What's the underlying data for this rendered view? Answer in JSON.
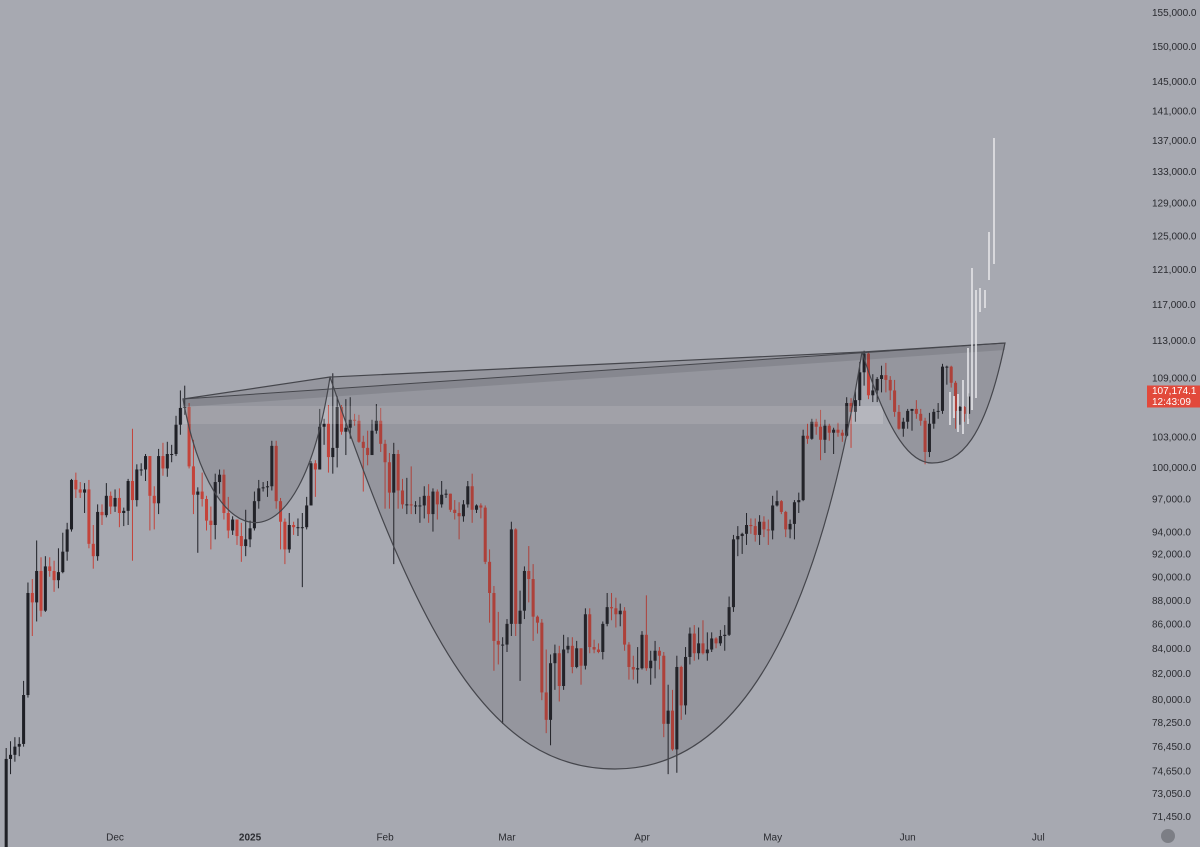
{
  "chart_data": {
    "type": "candlestick",
    "log_scale": true,
    "grid": false,
    "up_color": "#1f2026",
    "down_color": "#c4433a",
    "ylim": [
      70600,
      157000
    ],
    "yticks": [
      {
        "value": 155000,
        "label": "155,000.0"
      },
      {
        "value": 150000,
        "label": "150,000.0"
      },
      {
        "value": 145000,
        "label": "145,000.0"
      },
      {
        "value": 141000,
        "label": "141,000.0"
      },
      {
        "value": 137000,
        "label": "137,000.0"
      },
      {
        "value": 133000,
        "label": "133,000.0"
      },
      {
        "value": 129000,
        "label": "129,000.0"
      },
      {
        "value": 125000,
        "label": "125,000.0"
      },
      {
        "value": 121000,
        "label": "121,000.0"
      },
      {
        "value": 117000,
        "label": "117,000.0"
      },
      {
        "value": 113000,
        "label": "113,000.0"
      },
      {
        "value": 109000,
        "label": "109,000.0"
      },
      {
        "value": 103000,
        "label": "103,000.0"
      },
      {
        "value": 100000,
        "label": "100,000.0"
      },
      {
        "value": 97000,
        "label": "97,000.0"
      },
      {
        "value": 94000,
        "label": "94,000.0"
      },
      {
        "value": 92000,
        "label": "92,000.0"
      },
      {
        "value": 90000,
        "label": "90,000.0"
      },
      {
        "value": 88000,
        "label": "88,000.0"
      },
      {
        "value": 86000,
        "label": "86,000.0"
      },
      {
        "value": 84000,
        "label": "84,000.0"
      },
      {
        "value": 82000,
        "label": "82,000.0"
      },
      {
        "value": 80000,
        "label": "80,000.0"
      },
      {
        "value": 78250,
        "label": "78,250.0"
      },
      {
        "value": 76450,
        "label": "76,450.0"
      },
      {
        "value": 74650,
        "label": "74,650.0"
      },
      {
        "value": 73050,
        "label": "73,050.0"
      },
      {
        "value": 71450,
        "label": "71,450.0"
      }
    ],
    "last_price": {
      "value": 107174.1,
      "label": "107,174.1"
    },
    "countdown": "12:43:09",
    "categories": [
      null,
      null,
      null,
      null,
      null,
      null,
      null,
      null,
      null,
      null,
      null,
      null,
      null,
      null,
      null,
      null,
      null,
      null,
      null,
      null,
      null,
      null,
      null,
      null,
      null,
      "Dec",
      null,
      null,
      null,
      null,
      null,
      null,
      null,
      null,
      null,
      null,
      null,
      null,
      null,
      null,
      null,
      null,
      null,
      null,
      null,
      null,
      null,
      null,
      null,
      null,
      null,
      null,
      null,
      null,
      null,
      null,
      "2025",
      null,
      null,
      null,
      null,
      null,
      null,
      null,
      null,
      null,
      null,
      null,
      null,
      null,
      null,
      null,
      null,
      null,
      null,
      null,
      null,
      null,
      null,
      null,
      null,
      null,
      null,
      null,
      null,
      null,
      null,
      "Feb",
      null,
      null,
      null,
      null,
      null,
      null,
      null,
      null,
      null,
      null,
      null,
      null,
      null,
      null,
      null,
      null,
      null,
      null,
      null,
      null,
      null,
      null,
      null,
      null,
      null,
      null,
      null,
      "Mar",
      null,
      null,
      null,
      null,
      null,
      null,
      null,
      null,
      null,
      null,
      null,
      null,
      null,
      null,
      null,
      null,
      null,
      null,
      null,
      null,
      null,
      null,
      null,
      null,
      null,
      null,
      null,
      null,
      null,
      null,
      "Apr",
      null,
      null,
      null,
      null,
      null,
      null,
      null,
      null,
      null,
      null,
      null,
      null,
      null,
      null,
      null,
      null,
      null,
      null,
      null,
      null,
      null,
      null,
      null,
      null,
      null,
      null,
      null,
      null,
      null,
      "May",
      null,
      null,
      null,
      null,
      null,
      null,
      null,
      null,
      null,
      null,
      null,
      null,
      null,
      null,
      null,
      null,
      null,
      null,
      null,
      null,
      null,
      null,
      null,
      null,
      null,
      null,
      null,
      null,
      null,
      null,
      "Jun",
      null,
      null,
      null,
      null,
      null,
      null,
      null,
      null,
      null,
      null,
      null,
      null,
      null,
      null,
      null,
      null,
      null,
      null,
      null,
      null,
      null,
      null,
      null,
      null,
      null,
      null,
      null,
      null,
      null,
      "Jul",
      null,
      null,
      null,
      null,
      null,
      null,
      null,
      null,
      null,
      null,
      null,
      null,
      null,
      null,
      null,
      null,
      null,
      null,
      null,
      null,
      null,
      null,
      null,
      null
    ],
    "open": [
      69400,
      75600,
      75900,
      76500,
      76700,
      80400,
      88700,
      87900,
      90600,
      87200,
      91000,
      90600,
      89800,
      90500,
      92300,
      94300,
      98900,
      98000,
      97700,
      98000,
      93000,
      91900,
      95900,
      95600,
      97400,
      96400,
      97200,
      95800,
      96000,
      98800,
      97000,
      99900,
      99900,
      101200,
      97400,
      96700,
      101200,
      100000,
      101400,
      101400,
      104300,
      106000,
      106100,
      100200,
      97500,
      97800,
      97100,
      95100,
      94700,
      98700,
      99400,
      95800,
      94200,
      95200,
      93700,
      92800,
      93400,
      94400,
      96900,
      98100,
      98200,
      98300,
      102200,
      96900,
      95000,
      92500,
      94700,
      94500,
      94500,
      94500,
      96500,
      100500,
      99900,
      104100,
      104400,
      101100,
      102000,
      106100,
      103600,
      104000,
      104800,
      104700,
      102600,
      102000,
      101300,
      103700,
      104700,
      102400,
      100600,
      97700,
      101400,
      97900,
      96600,
      96600,
      96500,
      96500,
      96500,
      97400,
      95700,
      97800,
      96600,
      97500,
      97600,
      96100,
      95800,
      95500,
      96600,
      98300,
      96100,
      96500,
      96300,
      91400,
      88700,
      84700,
      84400,
      84400,
      86100,
      94300,
      86100,
      87200,
      90600,
      89900,
      86700,
      86200,
      80600,
      78500,
      82900,
      83700,
      81100,
      84000,
      84300,
      82600,
      84100,
      82700,
      86900,
      84200,
      84000,
      83800,
      86100,
      87500,
      87400,
      86900,
      87200,
      84400,
      82600,
      82400,
      82500,
      85200,
      82500,
      83100,
      83900,
      83500,
      78200,
      79200,
      76300,
      82600,
      79600,
      83400,
      85300,
      83700,
      84500,
      83700,
      84000,
      84900,
      84500,
      85100,
      85200,
      87500,
      93400,
      93700,
      93900,
      94700,
      94600,
      93800,
      95000,
      94300,
      94200,
      96500,
      96900,
      95900,
      94300,
      94800,
      96800,
      97000,
      103200,
      102900,
      104600,
      104100,
      102800,
      104200,
      103500,
      103800,
      103500,
      103200,
      106500,
      105600,
      106800,
      109700,
      111700,
      107300,
      107800,
      109000,
      109400,
      108900,
      107800,
      105600,
      103900,
      104600,
      105700,
      105900,
      105400,
      104700,
      101600,
      104400,
      105600,
      105700,
      110300,
      110300,
      108600,
      105700,
      106100,
      105400,
      null,
      null,
      null,
      null,
      null,
      null,
      null,
      null,
      null,
      null,
      null,
      null,
      null,
      null,
      null,
      null,
      null,
      null,
      null,
      null,
      null,
      null,
      null,
      null,
      null,
      null,
      null,
      null,
      null,
      null,
      null,
      null,
      null,
      null,
      null,
      null,
      null,
      null,
      null,
      null
    ],
    "high": [
      76400,
      76900,
      77200,
      77200,
      81500,
      89600,
      89900,
      93300,
      91800,
      91900,
      91800,
      91500,
      92600,
      94000,
      94900,
      99000,
      99600,
      98700,
      98600,
      98900,
      94700,
      96600,
      96600,
      98600,
      97800,
      98000,
      98100,
      96300,
      99000,
      103900,
      100400,
      100500,
      101400,
      101200,
      98300,
      101900,
      102500,
      102600,
      102300,
      105200,
      107800,
      108300,
      106500,
      102800,
      98200,
      99600,
      97400,
      96400,
      99500,
      99900,
      99900,
      97300,
      95500,
      95200,
      94900,
      96100,
      95100,
      97800,
      98900,
      98700,
      98800,
      102700,
      102700,
      97200,
      95300,
      95800,
      95000,
      95300,
      95800,
      97300,
      100700,
      100800,
      105900,
      104900,
      106300,
      109600,
      107200,
      106300,
      106900,
      107100,
      105400,
      105300,
      103200,
      103700,
      104800,
      106400,
      106000,
      102800,
      101500,
      102500,
      101800,
      99000,
      99100,
      100200,
      96900,
      97300,
      98300,
      98500,
      98100,
      98000,
      98800,
      98000,
      97600,
      97000,
      96800,
      97000,
      98800,
      99500,
      96600,
      96700,
      96500,
      92500,
      89300,
      87100,
      85000,
      86500,
      95000,
      94400,
      88900,
      91000,
      92800,
      91200,
      86800,
      86500,
      84000,
      83600,
      84400,
      84300,
      85200,
      85000,
      85000,
      84700,
      84100,
      87400,
      87400,
      84800,
      84500,
      86300,
      88700,
      88700,
      88300,
      87800,
      87500,
      84600,
      83500,
      84200,
      85500,
      88500,
      83900,
      84700,
      84200,
      83800,
      81200,
      80800,
      83500,
      82700,
      84200,
      85800,
      86000,
      85800,
      86400,
      85400,
      85400,
      85000,
      85600,
      86000,
      88400,
      93800,
      94600,
      94000,
      95800,
      95300,
      95300,
      95600,
      95500,
      95200,
      97400,
      97900,
      97000,
      96000,
      95200,
      97000,
      97700,
      103800,
      104400,
      104900,
      104900,
      105800,
      104800,
      104400,
      104000,
      104500,
      103800,
      107100,
      107000,
      107700,
      110800,
      112000,
      111900,
      109500,
      109200,
      110400,
      110700,
      109300,
      108900,
      106300,
      105000,
      105900,
      105900,
      106800,
      105900,
      105000,
      105500,
      105900,
      106500,
      110600,
      110400,
      110400,
      108800,
      106200,
      106200,
      107500,
      null,
      null,
      null,
      null,
      null,
      null,
      null,
      null,
      null,
      null,
      null,
      null,
      null,
      null,
      null,
      null,
      null,
      null,
      null,
      null,
      null,
      null,
      null,
      null,
      null,
      null,
      null,
      null,
      null,
      null,
      null,
      null,
      null,
      null,
      null,
      null,
      null,
      null,
      null,
      null
    ],
    "low": [
      68800,
      74500,
      75400,
      75800,
      76500,
      80200,
      85100,
      86300,
      86700,
      87100,
      90100,
      88800,
      89100,
      90400,
      91500,
      94100,
      97200,
      97200,
      95800,
      92600,
      90800,
      91500,
      94700,
      95400,
      95700,
      95900,
      94500,
      94600,
      94700,
      91500,
      96400,
      99300,
      98800,
      94200,
      94300,
      95700,
      99300,
      99200,
      100600,
      101200,
      103300,
      105300,
      100000,
      95700,
      92200,
      96400,
      94200,
      92500,
      93400,
      97600,
      95200,
      93500,
      93800,
      92900,
      91400,
      91900,
      92700,
      94200,
      96200,
      97800,
      97300,
      97900,
      96200,
      92500,
      91200,
      92200,
      93800,
      93700,
      89200,
      94300,
      96500,
      97300,
      99900,
      102300,
      99600,
      99500,
      100100,
      103300,
      101300,
      102900,
      104200,
      102500,
      97800,
      100300,
      101300,
      103400,
      101600,
      96200,
      96200,
      91200,
      96200,
      96200,
      95700,
      95700,
      95700,
      94900,
      95300,
      94900,
      94100,
      95200,
      96300,
      97200,
      95900,
      95200,
      93400,
      95000,
      96300,
      94900,
      95800,
      95300,
      91200,
      86200,
      82300,
      82800,
      78200,
      83800,
      85100,
      85100,
      81500,
      86500,
      87900,
      84700,
      85300,
      80000,
      77500,
      76600,
      80800,
      79900,
      80800,
      83700,
      82100,
      82500,
      81200,
      82400,
      83700,
      83700,
      83700,
      83200,
      85900,
      86400,
      85800,
      85900,
      83900,
      81600,
      81600,
      81300,
      82400,
      82300,
      81200,
      81700,
      82400,
      77200,
      74500,
      76200,
      74600,
      78500,
      78900,
      82800,
      83100,
      83200,
      83600,
      83100,
      83800,
      84100,
      84300,
      83900,
      85100,
      87100,
      91900,
      92100,
      92900,
      93900,
      93200,
      92900,
      93600,
      92900,
      93400,
      96400,
      95700,
      93600,
      93500,
      93400,
      95800,
      96900,
      102400,
      102800,
      103300,
      100800,
      101500,
      102700,
      101400,
      103100,
      102600,
      103100,
      102000,
      104600,
      106200,
      108300,
      106900,
      106600,
      106600,
      107600,
      107600,
      106800,
      105100,
      103800,
      103100,
      103900,
      103700,
      104900,
      104200,
      100400,
      101100,
      103900,
      104900,
      105400,
      108400,
      108100,
      103900,
      104300,
      104600,
      104900,
      null,
      null,
      null,
      null,
      null,
      null,
      null,
      null,
      null,
      null,
      null,
      null,
      null,
      null,
      null,
      null,
      null,
      null,
      null,
      null,
      null,
      null,
      null,
      null,
      null,
      null,
      null,
      null,
      null,
      null,
      null,
      null,
      null,
      null,
      null,
      null,
      null,
      null,
      null,
      null
    ],
    "close": [
      75600,
      75900,
      76500,
      76700,
      80400,
      88700,
      87900,
      90600,
      87200,
      91000,
      90600,
      89800,
      90500,
      92300,
      94300,
      98900,
      98000,
      97700,
      98000,
      93000,
      91900,
      95900,
      95600,
      97400,
      96400,
      97200,
      95800,
      96000,
      98800,
      97000,
      99900,
      99900,
      101200,
      97400,
      96700,
      101200,
      100000,
      101400,
      101400,
      104300,
      106000,
      106100,
      100200,
      97500,
      97800,
      97100,
      95100,
      94700,
      98700,
      99400,
      95800,
      94200,
      95200,
      93700,
      92800,
      93400,
      94400,
      96900,
      98100,
      98200,
      98300,
      102200,
      96900,
      95000,
      92500,
      94700,
      94500,
      94500,
      94500,
      96500,
      100500,
      99900,
      104100,
      104400,
      101100,
      102000,
      106100,
      103600,
      104000,
      104800,
      104700,
      102600,
      102000,
      101300,
      103700,
      104700,
      102400,
      100600,
      97700,
      101400,
      97900,
      96600,
      96600,
      96500,
      96500,
      96500,
      97400,
      95700,
      97800,
      96600,
      97500,
      97600,
      96100,
      95800,
      95500,
      96600,
      98300,
      96100,
      96500,
      96300,
      91400,
      88700,
      84700,
      84400,
      84400,
      86100,
      94300,
      86100,
      87200,
      90600,
      89900,
      86700,
      86200,
      80600,
      78500,
      82900,
      83700,
      81100,
      84000,
      84300,
      82600,
      84100,
      82700,
      86900,
      84200,
      84000,
      83800,
      86100,
      87500,
      87400,
      86900,
      87200,
      84400,
      82600,
      82400,
      82500,
      85200,
      82500,
      83100,
      83900,
      83500,
      78200,
      79200,
      76300,
      82600,
      79600,
      83400,
      85300,
      83700,
      84500,
      83700,
      84000,
      84900,
      84500,
      85100,
      85200,
      87500,
      93400,
      93700,
      93900,
      94700,
      94600,
      93800,
      95000,
      94300,
      94200,
      96500,
      96900,
      95900,
      94300,
      94800,
      96800,
      97000,
      103200,
      102900,
      104600,
      104100,
      102800,
      104200,
      103500,
      103800,
      103500,
      103200,
      106500,
      105600,
      106800,
      109700,
      111700,
      107300,
      107800,
      109000,
      109400,
      108900,
      107800,
      105600,
      103900,
      104600,
      105700,
      105900,
      105400,
      104700,
      101600,
      104400,
      105600,
      105700,
      110300,
      110300,
      108600,
      105700,
      106100,
      105400,
      107174.1,
      null,
      null,
      null,
      null,
      null,
      null,
      null,
      null,
      null,
      null,
      null,
      null,
      null,
      null,
      null,
      null,
      null,
      null,
      null,
      null,
      null,
      null,
      null,
      null,
      null,
      null,
      null,
      null,
      null,
      null,
      null,
      null,
      null,
      null,
      null,
      null,
      null,
      null,
      null,
      null
    ]
  }
}
